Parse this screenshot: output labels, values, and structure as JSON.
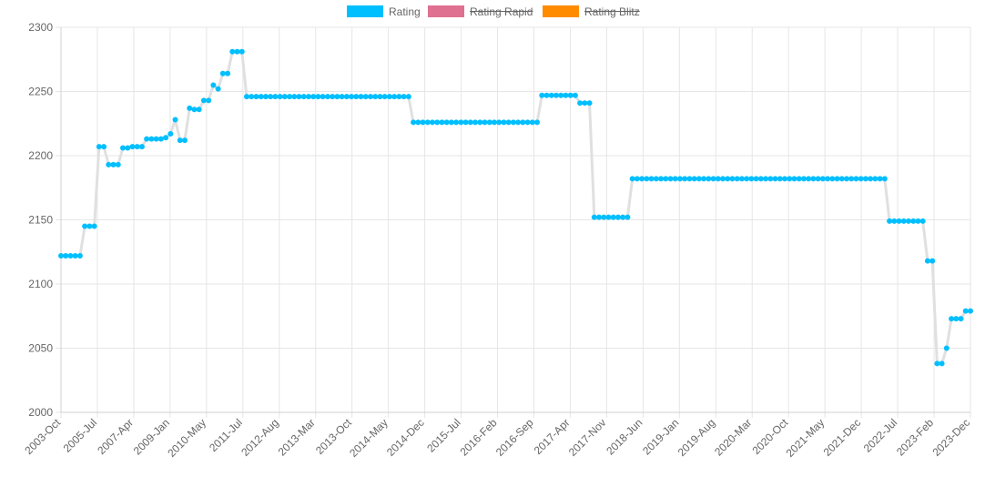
{
  "chart_data": {
    "type": "line",
    "y_ticks": [
      "2000",
      "2050",
      "2100",
      "2150",
      "2200",
      "2250",
      "2300"
    ],
    "ylim": [
      2000,
      2300
    ],
    "x_tick_labels": [
      "2003-Oct",
      "2005-Jul",
      "2007-Apr",
      "2009-Jan",
      "2010-May",
      "2011-Jul",
      "2012-Aug",
      "2013-Mar",
      "2013-Oct",
      "2014-May",
      "2014-Dec",
      "2015-Jul",
      "2016-Feb",
      "2016-Sep",
      "2017-Apr",
      "2017-Nov",
      "2018-Jun",
      "2019-Jan",
      "2019-Aug",
      "2020-Mar",
      "2020-Oct",
      "2021-May",
      "2021-Dec",
      "2022-Jul",
      "2023-Feb",
      "2023-Dec"
    ],
    "grid": true,
    "legend": {
      "placement": "top-center",
      "items": [
        {
          "label": "Rating",
          "color": "#00bfff",
          "hidden": false
        },
        {
          "label": "Rating Rapid",
          "color": "#e07090",
          "hidden": true
        },
        {
          "label": "Rating Blitz",
          "color": "#ff8c00",
          "hidden": true
        }
      ]
    },
    "series": [
      {
        "name": "Rating",
        "line_color": "#e0e0e0",
        "point_color": "#00bfff",
        "values": [
          2122,
          2122,
          2122,
          2122,
          2122,
          2145,
          2145,
          2145,
          2207,
          2207,
          2193,
          2193,
          2193,
          2206,
          2206,
          2207,
          2207,
          2207,
          2213,
          2213,
          2213,
          2213,
          2214,
          2217,
          2228,
          2212,
          2212,
          2237,
          2236,
          2236,
          2243,
          2243,
          2255,
          2252,
          2264,
          2264,
          2281,
          2281,
          2281,
          2246,
          2246,
          2246,
          2246,
          2246,
          2246,
          2246,
          2246,
          2246,
          2246,
          2246,
          2246,
          2246,
          2246,
          2246,
          2246,
          2246,
          2246,
          2246,
          2246,
          2246,
          2246,
          2246,
          2246,
          2246,
          2246,
          2246,
          2246,
          2246,
          2246,
          2246,
          2246,
          2246,
          2246,
          2246,
          2226,
          2226,
          2226,
          2226,
          2226,
          2226,
          2226,
          2226,
          2226,
          2226,
          2226,
          2226,
          2226,
          2226,
          2226,
          2226,
          2226,
          2226,
          2226,
          2226,
          2226,
          2226,
          2226,
          2226,
          2226,
          2226,
          2226,
          2247,
          2247,
          2247,
          2247,
          2247,
          2247,
          2247,
          2247,
          2241,
          2241,
          2241,
          2152,
          2152,
          2152,
          2152,
          2152,
          2152,
          2152,
          2152,
          2182,
          2182,
          2182,
          2182,
          2182,
          2182,
          2182,
          2182,
          2182,
          2182,
          2182,
          2182,
          2182,
          2182,
          2182,
          2182,
          2182,
          2182,
          2182,
          2182,
          2182,
          2182,
          2182,
          2182,
          2182,
          2182,
          2182,
          2182,
          2182,
          2182,
          2182,
          2182,
          2182,
          2182,
          2182,
          2182,
          2182,
          2182,
          2182,
          2182,
          2182,
          2182,
          2182,
          2182,
          2182,
          2182,
          2182,
          2182,
          2182,
          2182,
          2182,
          2182,
          2182,
          2182,
          2149,
          2149,
          2149,
          2149,
          2149,
          2149,
          2149,
          2149,
          2118,
          2118,
          2038,
          2038,
          2050,
          2073,
          2073,
          2073,
          2079,
          2079
        ]
      }
    ]
  }
}
